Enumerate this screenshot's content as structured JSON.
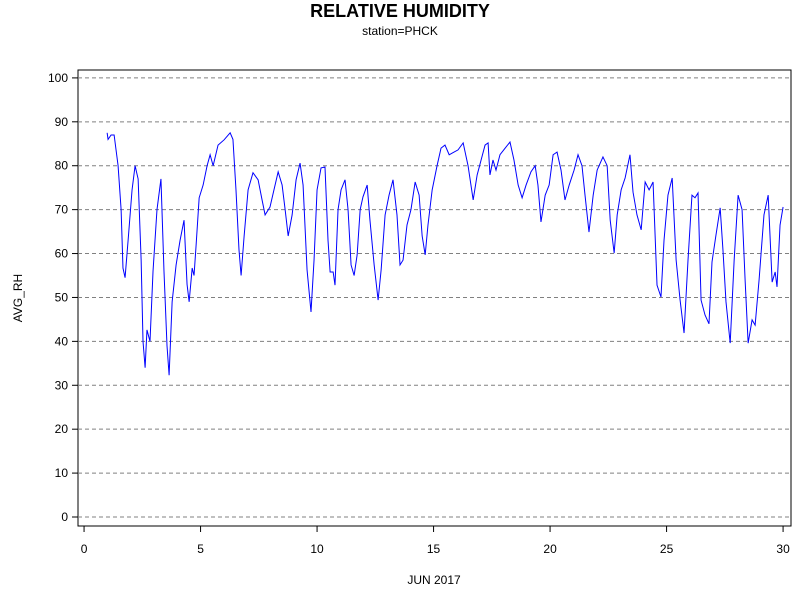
{
  "chart_data": {
    "type": "line",
    "title": "RELATIVE HUMIDITY",
    "subtitle": "station=PHCK",
    "x_label": "JUN 2017",
    "y_label": "AVG_RH",
    "color": "#0000ff",
    "grid": true,
    "xlim": [
      -0.26,
      30.34
    ],
    "ylim": [
      -2.05,
      101.8
    ],
    "xticks": [
      0,
      5,
      10,
      15,
      20,
      25,
      30
    ],
    "yticks": [
      0,
      10,
      20,
      30,
      40,
      50,
      60,
      70,
      80,
      90,
      100
    ],
    "x": [
      0.99,
      1.03,
      1.16,
      1.29,
      1.46,
      1.59,
      1.67,
      1.76,
      1.89,
      2.06,
      2.19,
      2.32,
      2.45,
      2.53,
      2.62,
      2.7,
      2.83,
      2.96,
      3.13,
      3.3,
      3.43,
      3.56,
      3.65,
      3.78,
      3.95,
      4.12,
      4.29,
      4.42,
      4.51,
      4.64,
      4.72,
      4.81,
      4.94,
      5.11,
      5.28,
      5.41,
      5.54,
      5.75,
      6.01,
      6.27,
      6.39,
      6.52,
      6.65,
      6.74,
      6.87,
      7.04,
      7.25,
      7.47,
      7.64,
      7.77,
      7.98,
      8.15,
      8.33,
      8.5,
      8.63,
      8.76,
      8.93,
      9.1,
      9.27,
      9.4,
      9.57,
      9.74,
      9.87,
      10.0,
      10.17,
      10.34,
      10.47,
      10.56,
      10.69,
      10.77,
      10.9,
      11.03,
      11.2,
      11.33,
      11.46,
      11.59,
      11.72,
      11.85,
      11.97,
      12.15,
      12.27,
      12.45,
      12.62,
      12.75,
      12.92,
      13.09,
      13.26,
      13.43,
      13.56,
      13.69,
      13.86,
      14.03,
      14.21,
      14.38,
      14.51,
      14.64,
      14.76,
      14.94,
      15.15,
      15.32,
      15.49,
      15.67,
      15.84,
      16.05,
      16.27,
      16.48,
      16.7,
      16.87,
      17.04,
      17.21,
      17.34,
      17.42,
      17.55,
      17.68,
      17.85,
      18.07,
      18.28,
      18.45,
      18.63,
      18.8,
      18.97,
      19.18,
      19.36,
      19.48,
      19.61,
      19.79,
      19.96,
      20.13,
      20.3,
      20.47,
      20.64,
      20.82,
      21.03,
      21.2,
      21.37,
      21.5,
      21.67,
      21.85,
      22.02,
      22.27,
      22.45,
      22.58,
      22.75,
      22.88,
      23.05,
      23.22,
      23.43,
      23.56,
      23.73,
      23.91,
      24.08,
      24.25,
      24.42,
      24.59,
      24.76,
      24.89,
      25.06,
      25.24,
      25.41,
      25.58,
      25.75,
      25.92,
      26.09,
      26.22,
      26.35,
      26.48,
      26.65,
      26.82,
      26.95,
      27.12,
      27.3,
      27.42,
      27.55,
      27.73,
      27.9,
      28.07,
      28.24,
      28.37,
      28.5,
      28.67,
      28.8,
      28.97,
      29.18,
      29.36,
      29.53,
      29.66,
      29.74,
      29.87,
      30.0
    ],
    "values": [
      87.5,
      86,
      87,
      87,
      80,
      70,
      56.7,
      54.5,
      63,
      74.5,
      80,
      77,
      58.5,
      40,
      34,
      42.6,
      40,
      56,
      70,
      77,
      56,
      39,
      32.3,
      49,
      57.4,
      63,
      67.6,
      53,
      49,
      56.7,
      55,
      62,
      72.7,
      75.6,
      80,
      82.5,
      80,
      84.7,
      85.9,
      87.5,
      86,
      74.5,
      60.8,
      55,
      64,
      74.5,
      78.4,
      76.8,
      72.2,
      68.8,
      70.6,
      74.5,
      78.6,
      75.6,
      70,
      64,
      68.8,
      76.8,
      80.6,
      75.6,
      56.3,
      46.7,
      58.5,
      74.5,
      79.5,
      79.7,
      63,
      55.8,
      55.8,
      52.8,
      70,
      74.5,
      76.8,
      70,
      57.4,
      55,
      59.7,
      70,
      72.9,
      75.6,
      67.6,
      57.4,
      49.4,
      56.3,
      68.8,
      73.3,
      76.8,
      68.8,
      57.4,
      58.5,
      66.5,
      70,
      76.3,
      73.3,
      64,
      59.7,
      66.5,
      74.5,
      80,
      84,
      84.7,
      82.5,
      83,
      83.6,
      85.2,
      80,
      72.2,
      77.9,
      81.3,
      84.7,
      85.2,
      77.9,
      81.3,
      79,
      82.5,
      84,
      85.4,
      81.3,
      75.6,
      72.7,
      75.6,
      78.6,
      80,
      75.6,
      67.2,
      73.3,
      75.6,
      82.5,
      83.1,
      79,
      72.2,
      75.6,
      79,
      82.5,
      80,
      73.3,
      64.9,
      73.3,
      79,
      82,
      80,
      67.6,
      60.1,
      68.8,
      74.5,
      77.2,
      82.5,
      74,
      68.8,
      65.4,
      76.3,
      74.5,
      76.3,
      52.8,
      50.1,
      63,
      73.3,
      77.2,
      58.5,
      49.4,
      41.9,
      58.5,
      73.3,
      72.7,
      73.8,
      49.4,
      46,
      44,
      58.1,
      64.2,
      70.4,
      60.8,
      49,
      39.6,
      58.5,
      73.3,
      70,
      54,
      39.6,
      44.9,
      43.7,
      54,
      68.8,
      73.3,
      53.5,
      55.8,
      52.4,
      66.5,
      70.6
    ]
  }
}
